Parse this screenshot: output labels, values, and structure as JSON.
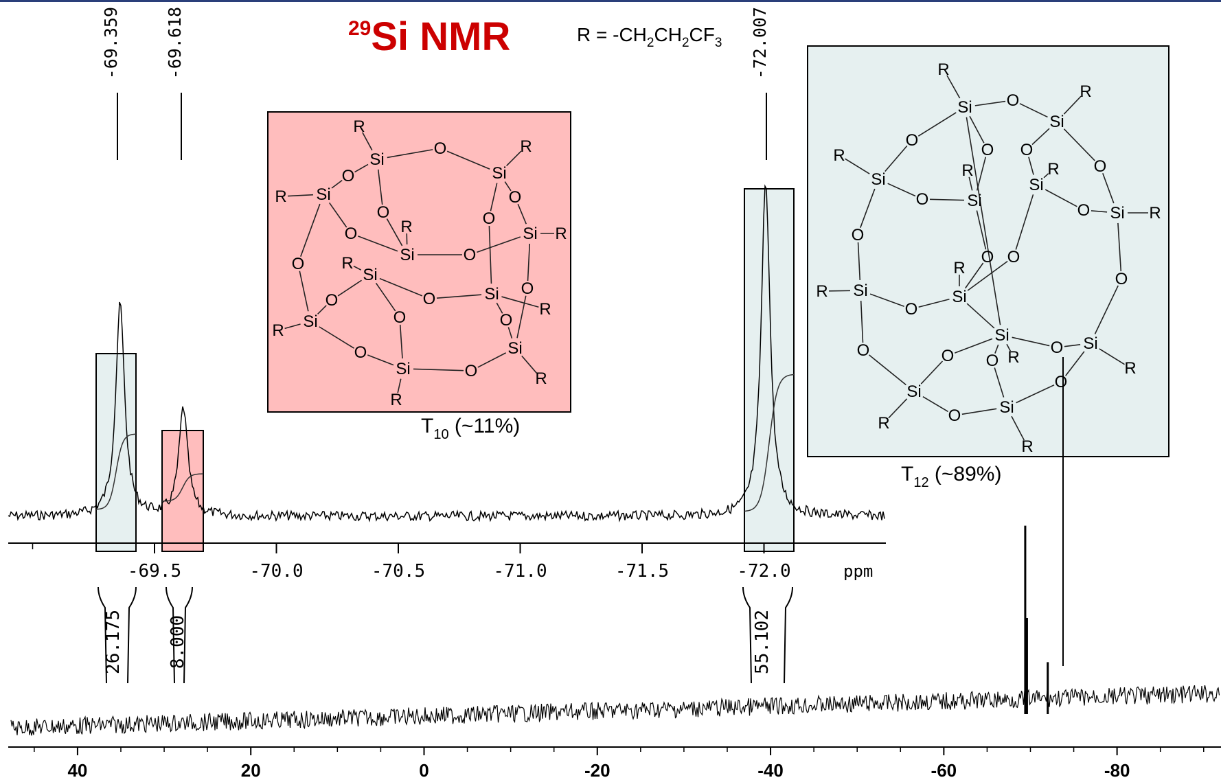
{
  "title": {
    "sup": "29",
    "main": "Si NMR"
  },
  "formula": {
    "prefix": "R = -CH",
    "sub1": "2",
    "mid1": "CH",
    "sub2": "2",
    "mid2": "CF",
    "sub3": "3"
  },
  "t10": {
    "base": "T",
    "sub": "10",
    "rest": " (~11%)"
  },
  "t12": {
    "base": "T",
    "sub": "12",
    "rest": " (~89%)"
  },
  "colors": {
    "title": "#cc0000",
    "t10_fill": "#ffbdbd",
    "t12_fill": "#e6f0f0",
    "ink": "#000000",
    "top_rule": "#2a3f7a"
  },
  "chart_data": [
    {
      "type": "line",
      "title": "",
      "xlabel": "ppm",
      "ylabel": "",
      "xlim": [
        -68.9,
        -72.5
      ],
      "peak_labels": [
        "-69.359",
        "-69.618",
        "-72.007"
      ],
      "peaks": [
        {
          "x": -69.359,
          "relative_height": 0.63,
          "series": "T12"
        },
        {
          "x": -69.618,
          "relative_height": 0.32,
          "series": "T10"
        },
        {
          "x": -72.007,
          "relative_height": 1.0,
          "series": "T12"
        }
      ],
      "ticks": [
        -69.5,
        -70.0,
        -70.5,
        -71.0,
        -71.5,
        -72.0
      ],
      "tick_labels": [
        "-69.5",
        "-70.0",
        "-70.5",
        "-71.0",
        "-71.5",
        "-72.0"
      ],
      "integrals": [
        {
          "from": -69.2,
          "to": -69.45,
          "value": "26.175"
        },
        {
          "from": -69.55,
          "to": -69.7,
          "value": "8.000"
        },
        {
          "from": -71.9,
          "to": -72.1,
          "value": "55.102"
        }
      ]
    },
    {
      "type": "line",
      "title": "",
      "xlabel": "",
      "ylabel": "",
      "xlim": [
        48,
        -92
      ],
      "tick_labels": [
        "40",
        "20",
        "0",
        "-20",
        "-40",
        "-60",
        "-80"
      ],
      "ticks": [
        40,
        20,
        0,
        -20,
        -40,
        -60,
        -80
      ],
      "peaks": [
        {
          "x": -69.4,
          "relative_height": 0.98
        },
        {
          "x": -69.6,
          "relative_height": 0.5
        },
        {
          "x": -72.0,
          "relative_height": 0.27
        }
      ]
    }
  ]
}
